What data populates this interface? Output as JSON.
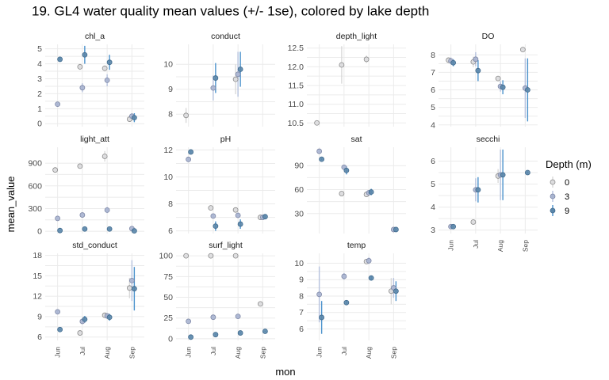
{
  "chart_data": {
    "type": "scatter",
    "title": "19. GL4 water quality mean values (+/- 1se), colored by lake depth",
    "xlabel": "mon",
    "ylabel": "mean_value",
    "categories": [
      "Jun",
      "Jul",
      "Aug",
      "Sep"
    ],
    "legend": {
      "title": "Depth (m)",
      "position": "right",
      "entries": [
        {
          "label": "0",
          "fill": "#dcdcde",
          "stroke": "#8a8a8a",
          "bar": "#d9d9d9"
        },
        {
          "label": "3",
          "fill": "#a8b4d0",
          "stroke": "#7d87a6",
          "bar": "#b6c2de"
        },
        {
          "label": "9",
          "fill": "#5a86aa",
          "stroke": "#3f6a8e",
          "bar": "#4b92cc"
        }
      ]
    },
    "grid": true,
    "panels": [
      {
        "name": "chl_a",
        "ylim": [
          -0.2,
          5.3
        ],
        "yticks": [
          0,
          1,
          2,
          3,
          4,
          5
        ],
        "series": {
          "0": [
            {
              "x": "Jun",
              "y": null
            },
            {
              "x": "Jul",
              "y": 3.8,
              "err": 0.2
            },
            {
              "x": "Aug",
              "y": 3.7,
              "err": 0.2
            },
            {
              "x": "Sep",
              "y": 0.3,
              "err": 0.1
            }
          ],
          "3": [
            {
              "x": "Jun",
              "y": 1.3,
              "err": 0.1
            },
            {
              "x": "Jul",
              "y": 2.4,
              "err": 0.3
            },
            {
              "x": "Aug",
              "y": 2.9,
              "err": 0.4
            },
            {
              "x": "Sep",
              "y": 0.5,
              "err": 0.2
            }
          ],
          "9": [
            {
              "x": "Jun",
              "y": 4.3,
              "err": 0.1
            },
            {
              "x": "Jul",
              "y": 4.6,
              "err": 0.6
            },
            {
              "x": "Aug",
              "y": 4.1,
              "err": 0.5
            },
            {
              "x": "Sep",
              "y": 0.4,
              "err": 0.3
            }
          ]
        }
      },
      {
        "name": "conduct",
        "ylim": [
          7.5,
          10.8
        ],
        "yticks": [
          8,
          9,
          10
        ],
        "series": {
          "0": [
            {
              "x": "Jun",
              "y": 7.95,
              "err": 0.3
            },
            {
              "x": "Jul",
              "y": null
            },
            {
              "x": "Aug",
              "y": 9.4,
              "err": 0.6
            },
            {
              "x": "Sep",
              "y": null
            }
          ],
          "3": [
            {
              "x": "Jun",
              "y": null
            },
            {
              "x": "Jul",
              "y": 9.05,
              "err": 0.5
            },
            {
              "x": "Aug",
              "y": 9.6,
              "err": 0.9
            },
            {
              "x": "Sep",
              "y": null
            }
          ],
          "9": [
            {
              "x": "Jun",
              "y": null
            },
            {
              "x": "Jul",
              "y": 9.45,
              "err": 0.6
            },
            {
              "x": "Aug",
              "y": 9.8,
              "err": 0.7
            },
            {
              "x": "Sep",
              "y": null
            }
          ]
        }
      },
      {
        "name": "depth_light",
        "ylim": [
          10.4,
          12.6
        ],
        "yticks": [
          10.5,
          11.0,
          11.5,
          12.0,
          12.5
        ],
        "decimals": 1,
        "series": {
          "0": [
            {
              "x": "Jun",
              "y": 10.5,
              "err": 0
            },
            {
              "x": "Jul",
              "y": 12.05,
              "err": 0.5
            },
            {
              "x": "Aug",
              "y": 12.2,
              "err": 0.1
            },
            {
              "x": "Sep",
              "y": null
            }
          ],
          "3": [],
          "9": []
        }
      },
      {
        "name": "DO",
        "ylim": [
          3.9,
          8.6
        ],
        "yticks": [
          4,
          5,
          6,
          7,
          8
        ],
        "series": {
          "0": [
            {
              "x": "Jun",
              "y": 7.7,
              "err": 0.1
            },
            {
              "x": "Jul",
              "y": 7.6,
              "err": 0.3
            },
            {
              "x": "Aug",
              "y": 6.65,
              "err": 0.1
            },
            {
              "x": "Sep",
              "y": 8.3,
              "err": 0.1
            }
          ],
          "3": [
            {
              "x": "Jun",
              "y": 7.65,
              "err": 0.2
            },
            {
              "x": "Jul",
              "y": 7.75,
              "err": 0.4
            },
            {
              "x": "Aug",
              "y": 6.2,
              "err": 0.3
            },
            {
              "x": "Sep",
              "y": 6.1,
              "err": 1.7
            }
          ],
          "9": [
            {
              "x": "Jun",
              "y": 7.55,
              "err": 0.2
            },
            {
              "x": "Jul",
              "y": 7.1,
              "err": 0.6
            },
            {
              "x": "Aug",
              "y": 6.15,
              "err": 0.4
            },
            {
              "x": "Sep",
              "y": 6.0,
              "err": 1.8
            }
          ]
        }
      },
      {
        "name": "light_att",
        "ylim": [
          -30,
          1110
        ],
        "yticks": [
          0,
          300,
          600,
          900
        ],
        "series": {
          "0": [
            {
              "x": "Jun",
              "y": 810,
              "err": 10
            },
            {
              "x": "Jul",
              "y": 860,
              "err": 20
            },
            {
              "x": "Aug",
              "y": 990,
              "err": 70
            },
            {
              "x": "Sep",
              "y": null
            }
          ],
          "3": [
            {
              "x": "Jun",
              "y": 170,
              "err": 5
            },
            {
              "x": "Jul",
              "y": 215,
              "err": 10
            },
            {
              "x": "Aug",
              "y": 280,
              "err": 40
            },
            {
              "x": "Sep",
              "y": 35,
              "err": 5
            }
          ],
          "9": [
            {
              "x": "Jun",
              "y": 10,
              "err": 3
            },
            {
              "x": "Jul",
              "y": 30,
              "err": 5
            },
            {
              "x": "Aug",
              "y": 30,
              "err": 8
            },
            {
              "x": "Sep",
              "y": 5,
              "err": 2
            }
          ]
        }
      },
      {
        "name": "pH",
        "ylim": [
          5.8,
          12.2
        ],
        "yticks": [
          6,
          8,
          10,
          12
        ],
        "series": {
          "0": [
            {
              "x": "Jun",
              "y": null
            },
            {
              "x": "Jul",
              "y": 7.7,
              "err": 0.05
            },
            {
              "x": "Aug",
              "y": 7.55,
              "err": 0.1
            },
            {
              "x": "Sep",
              "y": 7.0,
              "err": 0.05
            }
          ],
          "3": [
            {
              "x": "Jun",
              "y": 11.3,
              "err": 0.05
            },
            {
              "x": "Jul",
              "y": 7.1,
              "err": 0.1
            },
            {
              "x": "Aug",
              "y": 7.15,
              "err": 0.2
            },
            {
              "x": "Sep",
              "y": 7.0,
              "err": 0.1
            }
          ],
          "9": [
            {
              "x": "Jun",
              "y": 11.85,
              "err": 0.05
            },
            {
              "x": "Jul",
              "y": 6.35,
              "err": 0.35
            },
            {
              "x": "Aug",
              "y": 6.5,
              "err": 0.35
            },
            {
              "x": "Sep",
              "y": 7.05,
              "err": 0.1
            }
          ]
        }
      },
      {
        "name": "sat",
        "ylim": [
          5,
          113
        ],
        "yticks": [
          30,
          60,
          90
        ],
        "series": {
          "0": [
            {
              "x": "Jun",
              "y": null
            },
            {
              "x": "Jul",
              "y": 55,
              "err": 1
            },
            {
              "x": "Aug",
              "y": 54,
              "err": 2
            },
            {
              "x": "Sep",
              "y": null
            }
          ],
          "3": [
            {
              "x": "Jun",
              "y": 108,
              "err": 1
            },
            {
              "x": "Jul",
              "y": 88,
              "err": 3
            },
            {
              "x": "Aug",
              "y": 56,
              "err": 3
            },
            {
              "x": "Sep",
              "y": 10,
              "err": 1
            }
          ],
          "9": [
            {
              "x": "Jun",
              "y": 98,
              "err": 1
            },
            {
              "x": "Jul",
              "y": 84,
              "err": 5
            },
            {
              "x": "Aug",
              "y": 57,
              "err": 4
            },
            {
              "x": "Sep",
              "y": 10,
              "err": 1
            }
          ]
        }
      },
      {
        "name": "secchi",
        "ylim": [
          2.85,
          6.6
        ],
        "yticks": [
          3,
          4,
          5,
          6
        ],
        "series": {
          "0": [
            {
              "x": "Jun",
              "y": null
            },
            {
              "x": "Jul",
              "y": 3.35,
              "err": 0.1
            },
            {
              "x": "Aug",
              "y": 5.35,
              "err": 0.3
            },
            {
              "x": "Sep",
              "y": null
            }
          ],
          "3": [
            {
              "x": "Jun",
              "y": 3.15,
              "err": 0.05
            },
            {
              "x": "Jul",
              "y": 4.75,
              "err": 0.5
            },
            {
              "x": "Aug",
              "y": 5.4,
              "err": 1.1
            },
            {
              "x": "Sep",
              "y": null
            }
          ],
          "9": [
            {
              "x": "Jun",
              "y": 3.15,
              "err": 0.05
            },
            {
              "x": "Jul",
              "y": 4.75,
              "err": 0.55
            },
            {
              "x": "Aug",
              "y": 5.4,
              "err": 1.1
            },
            {
              "x": "Sep",
              "y": 5.5,
              "err": 0.05
            }
          ]
        }
      },
      {
        "name": "std_conduct",
        "ylim": [
          5.5,
          18.3
        ],
        "yticks": [
          6,
          9,
          12,
          15,
          18
        ],
        "series": {
          "0": [
            {
              "x": "Jun",
              "y": null
            },
            {
              "x": "Jul",
              "y": 6.6,
              "err": 0.3
            },
            {
              "x": "Aug",
              "y": 9.2,
              "err": 0.3
            },
            {
              "x": "Sep",
              "y": 13.2,
              "err": 1.5
            }
          ],
          "3": [
            {
              "x": "Jun",
              "y": 9.7,
              "err": 0.2
            },
            {
              "x": "Jul",
              "y": 8.3,
              "err": 0.4
            },
            {
              "x": "Aug",
              "y": 9.1,
              "err": 0.4
            },
            {
              "x": "Sep",
              "y": 14.3,
              "err": 3.0
            }
          ],
          "9": [
            {
              "x": "Jun",
              "y": 7.1,
              "err": 0.1
            },
            {
              "x": "Jul",
              "y": 8.6,
              "err": 0.5
            },
            {
              "x": "Aug",
              "y": 8.9,
              "err": 0.5
            },
            {
              "x": "Sep",
              "y": 13.1,
              "err": 3.2
            }
          ]
        }
      },
      {
        "name": "surf_light",
        "ylim": [
          -2,
          103
        ],
        "yticks": [
          0,
          25,
          50,
          75,
          100
        ],
        "series": {
          "0": [
            {
              "x": "Jun",
              "y": 100,
              "err": 0.5
            },
            {
              "x": "Jul",
              "y": 100,
              "err": 0.5
            },
            {
              "x": "Aug",
              "y": 100,
              "err": 0.5
            },
            {
              "x": "Sep",
              "y": 42,
              "err": 0.5
            }
          ],
          "3": [
            {
              "x": "Jun",
              "y": 21,
              "err": 0.5
            },
            {
              "x": "Jul",
              "y": 26,
              "err": 1
            },
            {
              "x": "Aug",
              "y": 27,
              "err": 2
            },
            {
              "x": "Sep",
              "y": null
            }
          ],
          "9": [
            {
              "x": "Jun",
              "y": 2,
              "err": 0.5
            },
            {
              "x": "Jul",
              "y": 5,
              "err": 1
            },
            {
              "x": "Aug",
              "y": 7,
              "err": 1
            },
            {
              "x": "Sep",
              "y": 9,
              "err": 0.5
            }
          ]
        }
      },
      {
        "name": "temp",
        "ylim": [
          5.3,
          10.6
        ],
        "yticks": [
          6,
          7,
          8,
          9,
          10
        ],
        "series": {
          "0": [
            {
              "x": "Jun",
              "y": null
            },
            {
              "x": "Jul",
              "y": null
            },
            {
              "x": "Aug",
              "y": 10.1,
              "err": 0.1
            },
            {
              "x": "Sep",
              "y": 8.3,
              "err": 0.8
            }
          ],
          "3": [
            {
              "x": "Jun",
              "y": 8.1,
              "err": 1.7
            },
            {
              "x": "Jul",
              "y": 9.2,
              "err": 0.2
            },
            {
              "x": "Aug",
              "y": 10.15,
              "err": 0.2
            },
            {
              "x": "Sep",
              "y": 8.5,
              "err": 0.6
            }
          ],
          "9": [
            {
              "x": "Jun",
              "y": 6.7,
              "err": 1.0
            },
            {
              "x": "Jul",
              "y": 7.6,
              "err": 0.15
            },
            {
              "x": "Aug",
              "y": 9.1,
              "err": 0.15
            },
            {
              "x": "Sep",
              "y": 8.3,
              "err": 0.6
            }
          ]
        }
      }
    ]
  }
}
